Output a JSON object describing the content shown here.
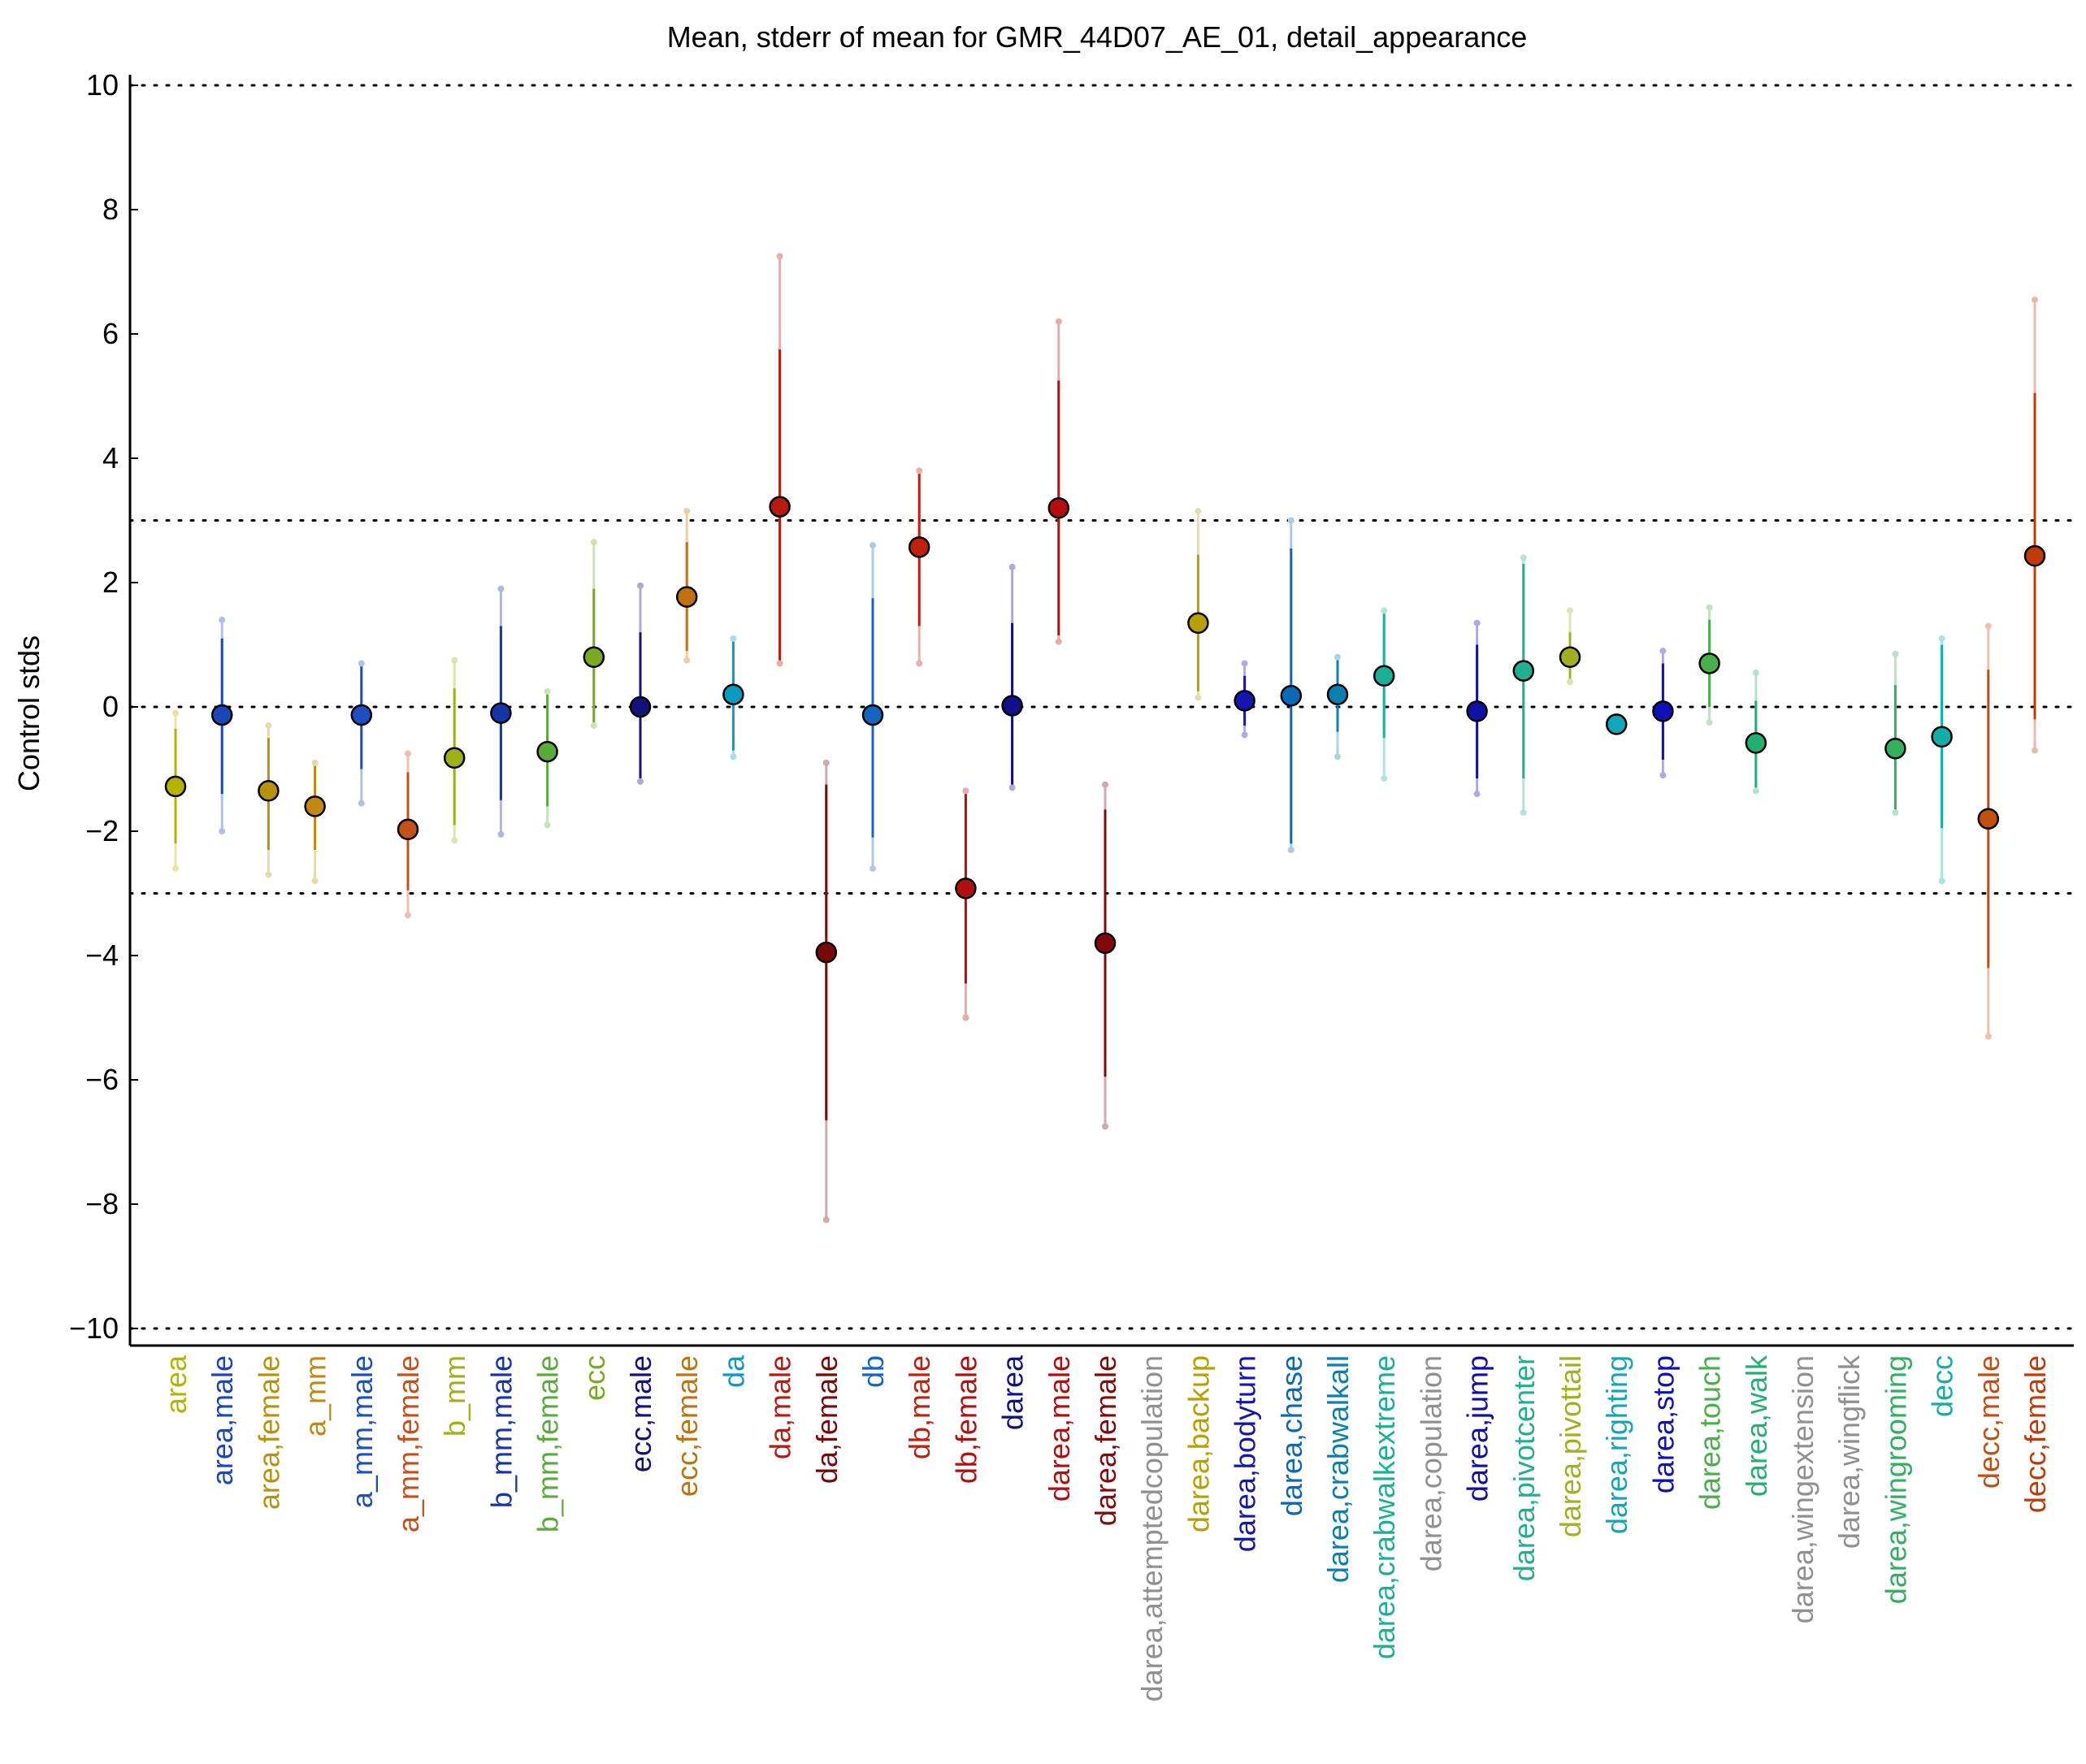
{
  "chart_data": {
    "type": "scatter",
    "title": "Mean, stderr of mean for GMR_44D07_AE_01, detail_appearance",
    "xlabel": "",
    "ylabel": "Control stds",
    "ylim": [
      -10.2,
      10.2
    ],
    "yticks": [
      10,
      8,
      6,
      4,
      2,
      0,
      -2,
      -4,
      -6,
      -8,
      -10
    ],
    "ytick_labels": [
      "10",
      "8",
      "6",
      "4",
      "2",
      "0",
      "−2",
      "−4",
      "−6",
      "−8",
      "−10"
    ],
    "reference_lines": [
      10,
      3,
      0,
      -3,
      -10
    ],
    "grid": false,
    "legend": "none",
    "categories": [
      "area",
      "area,male",
      "area,female",
      "a_mm",
      "a_mm,male",
      "a_mm,female",
      "b_mm",
      "b_mm,male",
      "b_mm,female",
      "ecc",
      "ecc,male",
      "ecc,female",
      "da",
      "da,male",
      "da,female",
      "db",
      "db,male",
      "db,female",
      "darea",
      "darea,male",
      "darea,female",
      "darea,attemptedcopulation",
      "darea,backup",
      "darea,bodyturn",
      "darea,chase",
      "darea,crabwalkall",
      "darea,crabwalkextreme",
      "darea,copulation",
      "darea,jump",
      "darea,pivotcenter",
      "darea,pivottail",
      "darea,righting",
      "darea,stop",
      "darea,touch",
      "darea,walk",
      "darea,wingextension",
      "darea,wingflick",
      "darea,wingrooming",
      "decc",
      "decc,male",
      "decc,female"
    ],
    "points": [
      {
        "label": "area",
        "mean": -1.28,
        "stderr_low": -2.2,
        "stderr_high": -0.35,
        "range_low": -2.6,
        "range_high": -0.1,
        "color": "#b5b300"
      },
      {
        "label": "area,male",
        "mean": -0.13,
        "stderr_low": -1.4,
        "stderr_high": 1.1,
        "range_low": -2.0,
        "range_high": 1.4,
        "color": "#1a48b8"
      },
      {
        "label": "area,female",
        "mean": -1.35,
        "stderr_low": -2.3,
        "stderr_high": -0.5,
        "range_low": -2.7,
        "range_high": -0.3,
        "color": "#b8920e"
      },
      {
        "label": "a_mm",
        "mean": -1.6,
        "stderr_low": -2.3,
        "stderr_high": -0.95,
        "range_low": -2.8,
        "range_high": -0.9,
        "color": "#c08a10"
      },
      {
        "label": "a_mm,male",
        "mean": -0.13,
        "stderr_low": -1.0,
        "stderr_high": 0.7,
        "range_low": -1.55,
        "range_high": 0.7,
        "color": "#1d4fc0"
      },
      {
        "label": "a_mm,female",
        "mean": -1.97,
        "stderr_low": -2.95,
        "stderr_high": -1.05,
        "range_low": -3.35,
        "range_high": -0.75,
        "color": "#c4501a"
      },
      {
        "label": "b_mm",
        "mean": -0.82,
        "stderr_low": -1.9,
        "stderr_high": 0.3,
        "range_low": -2.15,
        "range_high": 0.75,
        "color": "#a0b018"
      },
      {
        "label": "b_mm,male",
        "mean": -0.1,
        "stderr_low": -1.5,
        "stderr_high": 1.3,
        "range_low": -2.05,
        "range_high": 1.9,
        "color": "#1535a8"
      },
      {
        "label": "b_mm,female",
        "mean": -0.72,
        "stderr_low": -1.6,
        "stderr_high": 0.25,
        "range_low": -1.9,
        "range_high": 0.25,
        "color": "#5aac3a"
      },
      {
        "label": "ecc",
        "mean": 0.8,
        "stderr_low": -0.3,
        "stderr_high": 1.9,
        "range_low": -0.3,
        "range_high": 2.65,
        "color": "#7aaa20"
      },
      {
        "label": "ecc,male",
        "mean": 0.0,
        "stderr_low": -1.2,
        "stderr_high": 1.2,
        "range_low": -1.2,
        "range_high": 1.95,
        "color": "#12127a"
      },
      {
        "label": "ecc,female",
        "mean": 1.77,
        "stderr_low": 0.9,
        "stderr_high": 2.65,
        "range_low": 0.75,
        "range_high": 3.15,
        "color": "#c0720e"
      },
      {
        "label": "da",
        "mean": 0.2,
        "stderr_low": -0.7,
        "stderr_high": 1.1,
        "range_low": -0.8,
        "range_high": 1.1,
        "color": "#0a9cc0"
      },
      {
        "label": "da,male",
        "mean": 3.22,
        "stderr_low": 0.7,
        "stderr_high": 5.75,
        "range_low": 0.7,
        "range_high": 7.25,
        "color": "#b81a10"
      },
      {
        "label": "da,female",
        "mean": -3.95,
        "stderr_low": -6.65,
        "stderr_high": -1.25,
        "range_low": -8.25,
        "range_high": -0.9,
        "color": "#7a0808"
      },
      {
        "label": "db",
        "mean": -0.13,
        "stderr_low": -2.1,
        "stderr_high": 1.75,
        "range_low": -2.6,
        "range_high": 2.6,
        "color": "#1565c0"
      },
      {
        "label": "db,male",
        "mean": 2.57,
        "stderr_low": 1.3,
        "stderr_high": 3.8,
        "range_low": 0.7,
        "range_high": 3.8,
        "color": "#c0200c"
      },
      {
        "label": "db,female",
        "mean": -2.92,
        "stderr_low": -4.45,
        "stderr_high": -1.4,
        "range_low": -5.0,
        "range_high": -1.35,
        "color": "#b01010"
      },
      {
        "label": "darea",
        "mean": 0.02,
        "stderr_low": -1.3,
        "stderr_high": 1.35,
        "range_low": -1.3,
        "range_high": 2.25,
        "color": "#10108a"
      },
      {
        "label": "darea,male",
        "mean": 3.2,
        "stderr_low": 1.15,
        "stderr_high": 5.25,
        "range_low": 1.05,
        "range_high": 6.2,
        "color": "#b40e0e"
      },
      {
        "label": "darea,female",
        "mean": -3.8,
        "stderr_low": -5.95,
        "stderr_high": -1.65,
        "range_low": -6.75,
        "range_high": -1.25,
        "color": "#820a0a"
      },
      {
        "label": "darea,attemptedcopulation",
        "mean": null,
        "color": "#909090"
      },
      {
        "label": "darea,backup",
        "mean": 1.35,
        "stderr_low": 0.25,
        "stderr_high": 2.45,
        "range_low": 0.15,
        "range_high": 3.15,
        "color": "#b8a000"
      },
      {
        "label": "darea,bodyturn",
        "mean": 0.1,
        "stderr_low": -0.3,
        "stderr_high": 0.5,
        "range_low": -0.45,
        "range_high": 0.7,
        "color": "#1515b0"
      },
      {
        "label": "darea,chase",
        "mean": 0.18,
        "stderr_low": -2.2,
        "stderr_high": 2.55,
        "range_low": -2.3,
        "range_high": 3.0,
        "color": "#0a6ab8"
      },
      {
        "label": "darea,crabwalkall",
        "mean": 0.2,
        "stderr_low": -0.4,
        "stderr_high": 0.8,
        "range_low": -0.8,
        "range_high": 0.8,
        "color": "#0a80b0"
      },
      {
        "label": "darea,crabwalkextreme",
        "mean": 0.5,
        "stderr_low": -0.5,
        "stderr_high": 1.5,
        "range_low": -1.15,
        "range_high": 1.55,
        "color": "#1ab098"
      },
      {
        "label": "darea,copulation",
        "mean": null,
        "color": "#909090"
      },
      {
        "label": "darea,jump",
        "mean": -0.07,
        "stderr_low": -1.15,
        "stderr_high": 1.0,
        "range_low": -1.4,
        "range_high": 1.35,
        "color": "#1010a8"
      },
      {
        "label": "darea,pivotcenter",
        "mean": 0.58,
        "stderr_low": -1.15,
        "stderr_high": 2.3,
        "range_low": -1.7,
        "range_high": 2.4,
        "color": "#20b090"
      },
      {
        "label": "darea,pivottail",
        "mean": 0.8,
        "stderr_low": 0.4,
        "stderr_high": 1.2,
        "range_low": 0.4,
        "range_high": 1.55,
        "color": "#a0b020"
      },
      {
        "label": "darea,righting",
        "mean": -0.28,
        "stderr_low": -0.28,
        "stderr_high": -0.28,
        "range_low": -0.28,
        "range_high": -0.28,
        "color": "#10a8b8"
      },
      {
        "label": "darea,stop",
        "mean": -0.07,
        "stderr_low": -0.85,
        "stderr_high": 0.7,
        "range_low": -1.1,
        "range_high": 0.9,
        "color": "#1010b8"
      },
      {
        "label": "darea,touch",
        "mean": 0.7,
        "stderr_low": 0.0,
        "stderr_high": 1.4,
        "range_low": -0.25,
        "range_high": 1.6,
        "color": "#48b048"
      },
      {
        "label": "darea,walk",
        "mean": -0.58,
        "stderr_low": -1.3,
        "stderr_high": 0.1,
        "range_low": -1.35,
        "range_high": 0.55,
        "color": "#22b070"
      },
      {
        "label": "darea,wingextension",
        "mean": null,
        "color": "#909090"
      },
      {
        "label": "darea,wingflick",
        "mean": null,
        "color": "#909090"
      },
      {
        "label": "darea,wingrooming",
        "mean": -0.67,
        "stderr_low": -1.65,
        "stderr_high": 0.35,
        "range_low": -1.7,
        "range_high": 0.85,
        "color": "#30b060"
      },
      {
        "label": "decc",
        "mean": -0.48,
        "stderr_low": -1.95,
        "stderr_high": 1.0,
        "range_low": -2.8,
        "range_high": 1.1,
        "color": "#10b0a8"
      },
      {
        "label": "decc,male",
        "mean": -1.8,
        "stderr_low": -4.2,
        "stderr_high": 0.6,
        "range_low": -5.3,
        "range_high": 1.3,
        "color": "#c45010"
      },
      {
        "label": "decc,female",
        "mean": 2.43,
        "stderr_low": -0.2,
        "stderr_high": 5.05,
        "range_low": -0.7,
        "range_high": 6.55,
        "color": "#c03a0a"
      }
    ]
  }
}
